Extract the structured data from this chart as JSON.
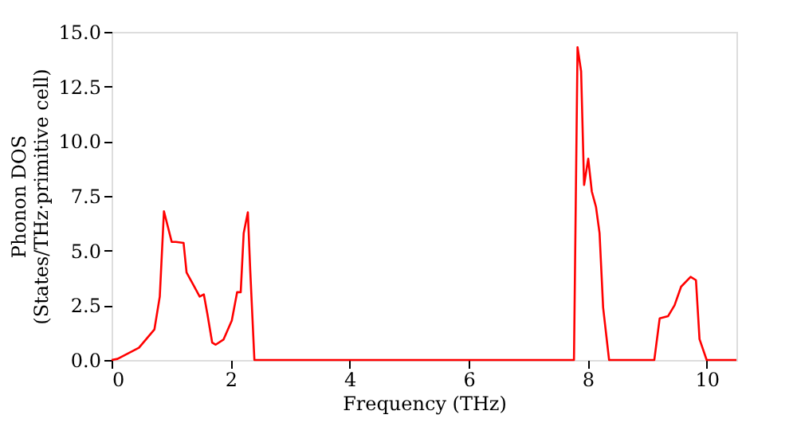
{
  "chart_data": {
    "type": "line",
    "xlabel": "Frequency (THz)",
    "ylabel": "Phonon DOS\n(States/THz·primitive cell)",
    "xlim": [
      0,
      10.5
    ],
    "ylim": [
      0,
      15
    ],
    "xticks": [
      0,
      2,
      4,
      6,
      8,
      10
    ],
    "yticks": [
      {
        "value": 0,
        "label": "0.0"
      },
      {
        "value": 2.5,
        "label": "2.5"
      },
      {
        "value": 5,
        "label": "5.0"
      },
      {
        "value": 7.5,
        "label": "7.5"
      },
      {
        "value": 10,
        "label": "10.0"
      },
      {
        "value": 12.5,
        "label": "12.5"
      },
      {
        "value": 15,
        "label": "15.0"
      }
    ],
    "grid": false,
    "marker": "none",
    "line_style": "solid",
    "series": [
      {
        "color": "#ff0000",
        "x": [
          0,
          0.1,
          0.46,
          0.72,
          0.81,
          0.88,
          1.01,
          1.08,
          1.21,
          1.26,
          1.39,
          1.48,
          1.55,
          1.61,
          1.69,
          1.75,
          1.88,
          2.02,
          2.11,
          2.17,
          2.22,
          2.29,
          2.33,
          2.4,
          7.77,
          7.83,
          7.89,
          7.94,
          8.01,
          8.07,
          8.14,
          8.2,
          8.26,
          8.36,
          9.12,
          9.21,
          9.35,
          9.46,
          9.57,
          9.73,
          9.82,
          9.88,
          10.0,
          10.5
        ],
        "values": [
          0,
          0.05,
          0.56,
          1.4,
          2.9,
          6.8,
          5.4,
          5.4,
          5.35,
          4.0,
          3.35,
          2.9,
          3.0,
          2.1,
          0.8,
          0.7,
          0.93,
          1.8,
          3.1,
          3.1,
          5.8,
          6.75,
          4.1,
          0,
          0,
          14.3,
          13.2,
          8.0,
          9.2,
          7.7,
          7.0,
          5.8,
          2.4,
          0,
          0,
          1.9,
          2.0,
          2.5,
          3.35,
          3.8,
          3.65,
          0.95,
          0,
          0
        ]
      }
    ]
  }
}
